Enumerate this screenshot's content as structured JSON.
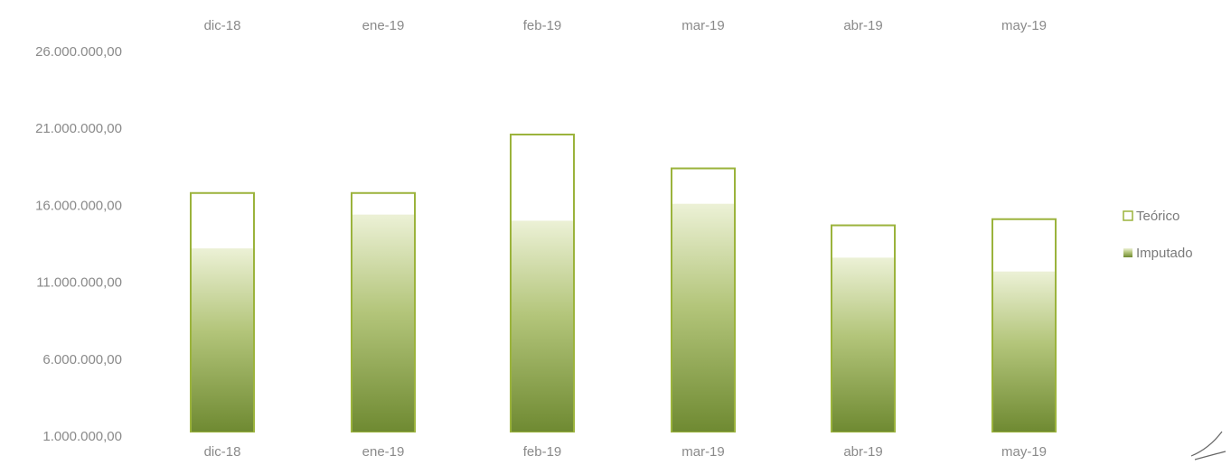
{
  "chart_data": {
    "type": "bar",
    "categories": [
      "dic-18",
      "ene-19",
      "feb-19",
      "mar-19",
      "abr-19",
      "may-19"
    ],
    "series": [
      {
        "name": "Teórico",
        "values": [
          16800000,
          16800000,
          20600000,
          18400000,
          14700000,
          15100000
        ]
      },
      {
        "name": "Imputado",
        "values": [
          13200000,
          15400000,
          15000000,
          16100000,
          12600000,
          11700000
        ]
      }
    ],
    "title": "",
    "xlabel": "",
    "ylabel": "",
    "ylim": [
      1000000,
      26000000
    ],
    "yticks": [
      1000000,
      6000000,
      11000000,
      16000000,
      21000000,
      26000000
    ],
    "ytick_labels": [
      "1.000.000,00",
      "6.000.000,00",
      "11.000.000,00",
      "16.000.000,00",
      "21.000.000,00",
      "26.000.000,00"
    ],
    "category_labels_top": true,
    "category_labels_bottom": true,
    "grid": false,
    "legend_position": "right",
    "colors": {
      "teorico_stroke": "#9bb33c",
      "teorico_fill": "#ffffff",
      "imputado_dark": "#6f8a32",
      "imputado_light": "#e6edc8",
      "axis_text": "#8a8a8a"
    }
  }
}
